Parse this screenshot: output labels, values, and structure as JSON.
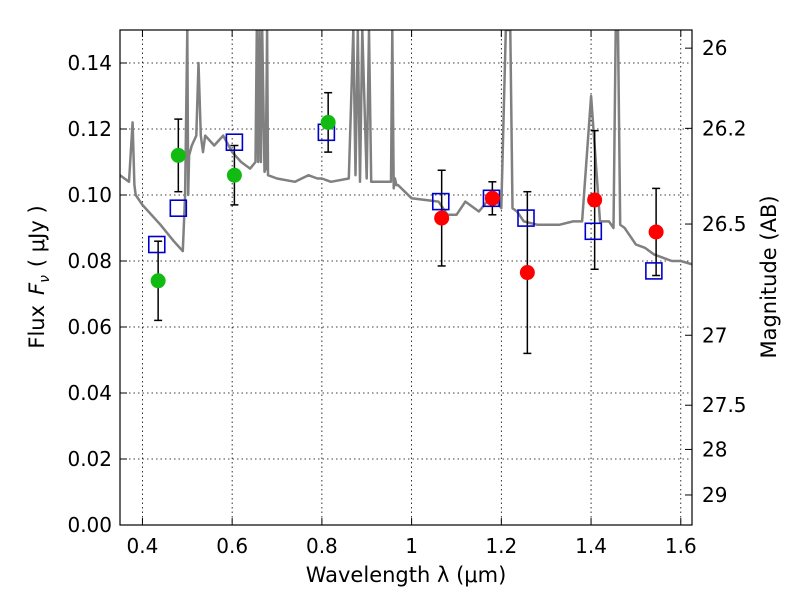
{
  "chart_data": {
    "type": "scatter",
    "xlabel": "Wavelength  λ (μm)",
    "ylabel_text": "Flux",
    "ylabel_symbol": "F",
    "ylabel_sub": "ν",
    "ylabel_unit": "( μJy )",
    "right_label": "Magnitude (AB)",
    "xlim": [
      0.35,
      1.625
    ],
    "ylim": [
      0.0,
      0.15
    ],
    "grid": true,
    "x_ticks": [
      {
        "value": 0.4,
        "label": "0.4"
      },
      {
        "value": 0.6,
        "label": "0.6"
      },
      {
        "value": 0.8,
        "label": "0.8"
      },
      {
        "value": 1.0,
        "label": "1"
      },
      {
        "value": 1.2,
        "label": "1.2"
      },
      {
        "value": 1.4,
        "label": "1.4"
      },
      {
        "value": 1.6,
        "label": "1.6"
      }
    ],
    "y_ticks": [
      {
        "value": 0.0,
        "label": "0.00"
      },
      {
        "value": 0.02,
        "label": "0.02"
      },
      {
        "value": 0.04,
        "label": "0.04"
      },
      {
        "value": 0.06,
        "label": "0.06"
      },
      {
        "value": 0.08,
        "label": "0.08"
      },
      {
        "value": 0.1,
        "label": "0.10"
      },
      {
        "value": 0.12,
        "label": "0.12"
      },
      {
        "value": 0.14,
        "label": "0.14"
      }
    ],
    "right_ticks": [
      {
        "flux": 0.1445,
        "label": "26"
      },
      {
        "flux": 0.1202,
        "label": "26.2"
      },
      {
        "flux": 0.0912,
        "label": "26.5"
      },
      {
        "flux": 0.0575,
        "label": "27"
      },
      {
        "flux": 0.0363,
        "label": "27.5"
      },
      {
        "flux": 0.0229,
        "label": "28"
      },
      {
        "flux": 0.0091,
        "label": "29"
      }
    ],
    "colors": {
      "green": "#11bb11",
      "red": "#ff0000",
      "box": "#0000cc",
      "model": "#808080",
      "errorbar": "#000000"
    },
    "series": [
      {
        "name": "green-photometry",
        "points": [
          {
            "x": 0.435,
            "y": 0.074,
            "err": 0.012
          },
          {
            "x": 0.48,
            "y": 0.112,
            "err": 0.011
          },
          {
            "x": 0.605,
            "y": 0.106,
            "err": 0.009
          },
          {
            "x": 0.814,
            "y": 0.122,
            "err": 0.009
          }
        ]
      },
      {
        "name": "red-photometry",
        "points": [
          {
            "x": 1.067,
            "y": 0.093,
            "err": 0.0145
          },
          {
            "x": 1.18,
            "y": 0.099,
            "err": 0.005
          },
          {
            "x": 1.258,
            "y": 0.0765,
            "err": 0.0245
          },
          {
            "x": 1.408,
            "y": 0.0985,
            "err": 0.021
          },
          {
            "x": 1.545,
            "y": 0.0888,
            "err": 0.0132
          }
        ]
      },
      {
        "name": "model-bandpass",
        "points": [
          {
            "x": 0.432,
            "y": 0.085
          },
          {
            "x": 0.48,
            "y": 0.096
          },
          {
            "x": 0.605,
            "y": 0.116
          },
          {
            "x": 0.81,
            "y": 0.119
          },
          {
            "x": 1.065,
            "y": 0.098
          },
          {
            "x": 1.178,
            "y": 0.099
          },
          {
            "x": 1.255,
            "y": 0.093
          },
          {
            "x": 1.405,
            "y": 0.089
          },
          {
            "x": 1.54,
            "y": 0.077
          }
        ]
      }
    ],
    "model_spectrum": {
      "name": "template-sed",
      "x": [
        0.35,
        0.37,
        0.378,
        0.382,
        0.385,
        0.4,
        0.44,
        0.47,
        0.49,
        0.495,
        0.5,
        0.502,
        0.504,
        0.51,
        0.52,
        0.525,
        0.53,
        0.535,
        0.54,
        0.56,
        0.58,
        0.6,
        0.62,
        0.64,
        0.652,
        0.655,
        0.658,
        0.661,
        0.664,
        0.667,
        0.672,
        0.675,
        0.678,
        0.68,
        0.7,
        0.74,
        0.77,
        0.79,
        0.8,
        0.82,
        0.86,
        0.87,
        0.875,
        0.88,
        0.885,
        0.89,
        0.9,
        0.905,
        0.91,
        0.93,
        0.954,
        0.957,
        0.96,
        0.963,
        0.966,
        0.97,
        1.0,
        1.06,
        1.08,
        1.1,
        1.12,
        1.15,
        1.18,
        1.2,
        1.21,
        1.22,
        1.225,
        1.235,
        1.24,
        1.25,
        1.28,
        1.3,
        1.33,
        1.36,
        1.38,
        1.4,
        1.42,
        1.44,
        1.45,
        1.455,
        1.46,
        1.465,
        1.475,
        1.48,
        1.5,
        1.52,
        1.54,
        1.56,
        1.58,
        1.6,
        1.625
      ],
      "y": [
        0.106,
        0.104,
        0.122,
        0.103,
        0.1,
        0.097,
        0.091,
        0.086,
        0.083,
        0.1,
        0.15,
        0.1,
        0.112,
        0.115,
        0.118,
        0.14,
        0.118,
        0.113,
        0.118,
        0.115,
        0.118,
        0.113,
        0.11,
        0.108,
        0.11,
        0.15,
        0.11,
        0.15,
        0.11,
        0.15,
        0.107,
        0.108,
        0.15,
        0.106,
        0.105,
        0.104,
        0.106,
        0.105,
        0.105,
        0.104,
        0.105,
        0.15,
        0.106,
        0.15,
        0.104,
        0.15,
        0.105,
        0.15,
        0.104,
        0.104,
        0.104,
        0.15,
        0.102,
        0.105,
        0.103,
        0.103,
        0.099,
        0.098,
        0.094,
        0.094,
        0.098,
        0.095,
        0.1,
        0.096,
        0.15,
        0.15,
        0.096,
        0.095,
        0.094,
        0.092,
        0.091,
        0.091,
        0.091,
        0.092,
        0.092,
        0.13,
        0.092,
        0.092,
        0.09,
        0.15,
        0.15,
        0.091,
        0.09,
        0.089,
        0.085,
        0.084,
        0.082,
        0.081,
        0.08,
        0.08,
        0.079
      ]
    }
  }
}
